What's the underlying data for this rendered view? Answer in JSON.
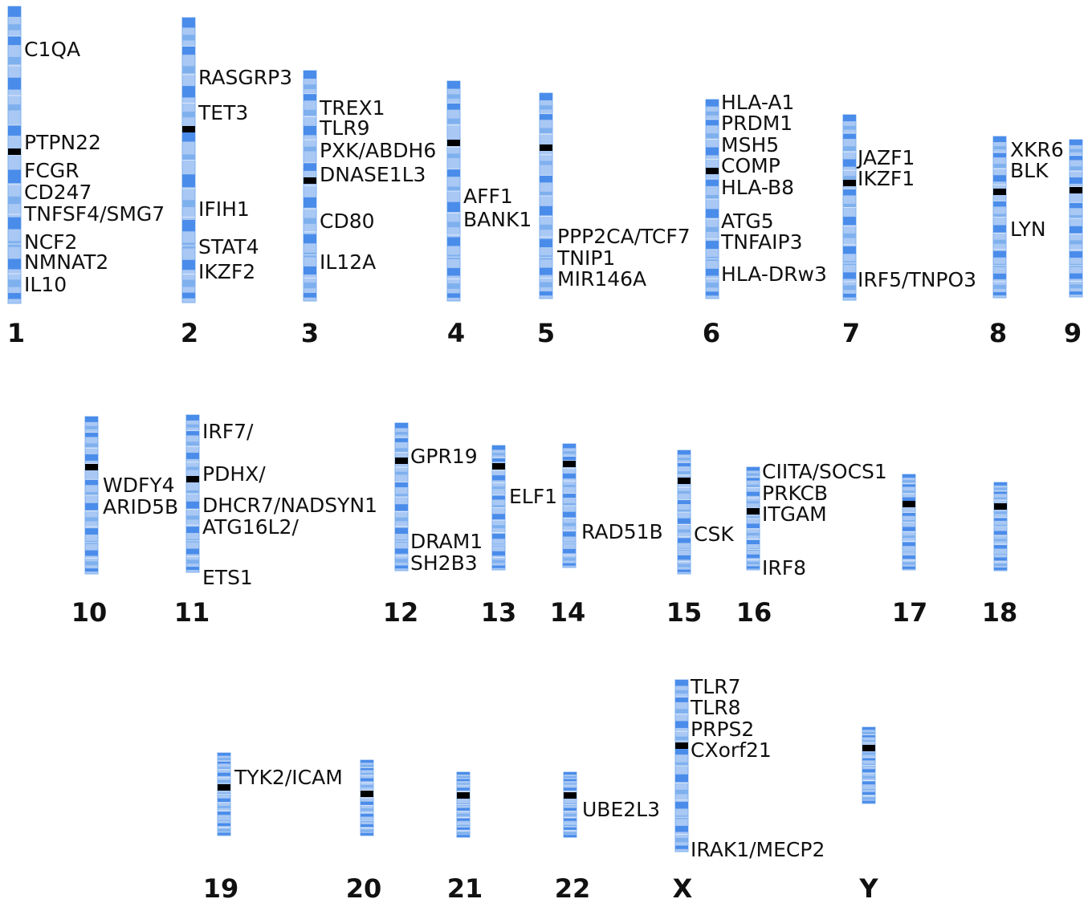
{
  "colors": {
    "band_light": "#a9c8f4",
    "band_mid": "#7fb0ee",
    "band_dark": "#4a8cea",
    "centromere": "#000000",
    "text": "#111111"
  },
  "chromosomes": [
    {
      "id": "1",
      "label": "1",
      "genes": [
        "C1QA",
        "PTPN22",
        "FCGR",
        "CD247",
        "TNFSF4/SMG7",
        "NCF2",
        "NMNAT2",
        "IL10"
      ]
    },
    {
      "id": "2",
      "label": "2",
      "genes": [
        "RASGRP3",
        "TET3",
        "IFIH1",
        "STAT4",
        "IKZF2"
      ]
    },
    {
      "id": "3",
      "label": "3",
      "genes": [
        "TREX1",
        "TLR9",
        "PXK/ABDH6",
        "DNASE1L3",
        "CD80",
        "IL12A"
      ]
    },
    {
      "id": "4",
      "label": "4",
      "genes": [
        "AFF1",
        "BANK1"
      ]
    },
    {
      "id": "5",
      "label": "5",
      "genes": [
        "PPP2CA/TCF7",
        "TNIP1",
        "MIR146A"
      ]
    },
    {
      "id": "6",
      "label": "6",
      "genes": [
        "HLA-A1",
        "PRDM1",
        "MSH5",
        "COMP",
        "HLA-B8",
        "ATG5",
        "TNFAIP3",
        "HLA-DRw3"
      ]
    },
    {
      "id": "7",
      "label": "7",
      "genes": [
        "JAZF1",
        "IKZF1",
        "IRF5/TNPO3"
      ]
    },
    {
      "id": "8",
      "label": "8",
      "genes": [
        "XKR6",
        "BLK",
        "LYN"
      ]
    },
    {
      "id": "9",
      "label": "9",
      "genes": []
    },
    {
      "id": "10",
      "label": "10",
      "genes": [
        "WDFY4",
        "ARID5B"
      ]
    },
    {
      "id": "11",
      "label": "11",
      "genes": [
        "IRF7/",
        "PDHX/",
        "DHCR7/NADSYN1",
        "ATG16L2/",
        "ETS1"
      ]
    },
    {
      "id": "12",
      "label": "12",
      "genes": [
        "GPR19",
        "DRAM1",
        "SH2B3"
      ]
    },
    {
      "id": "13",
      "label": "13",
      "genes": [
        "ELF1"
      ]
    },
    {
      "id": "14",
      "label": "14",
      "genes": [
        "RAD51B"
      ]
    },
    {
      "id": "15",
      "label": "15",
      "genes": [
        "CSK"
      ]
    },
    {
      "id": "16",
      "label": "16",
      "genes": [
        "CIITA/SOCS1",
        "PRKCB",
        "ITGAM",
        "IRF8"
      ]
    },
    {
      "id": "17",
      "label": "17",
      "genes": []
    },
    {
      "id": "18",
      "label": "18",
      "genes": []
    },
    {
      "id": "19",
      "label": "19",
      "genes": [
        "TYK2/ICAM"
      ]
    },
    {
      "id": "20",
      "label": "20",
      "genes": []
    },
    {
      "id": "21",
      "label": "21",
      "genes": []
    },
    {
      "id": "22",
      "label": "22",
      "genes": [
        "UBE2L3"
      ]
    },
    {
      "id": "X",
      "label": "X",
      "genes": [
        "TLR7",
        "TLR8",
        "PRPS2",
        "CXorf21",
        "IRAK1/MECP2"
      ]
    },
    {
      "id": "Y",
      "label": "Y",
      "genes": []
    }
  ]
}
